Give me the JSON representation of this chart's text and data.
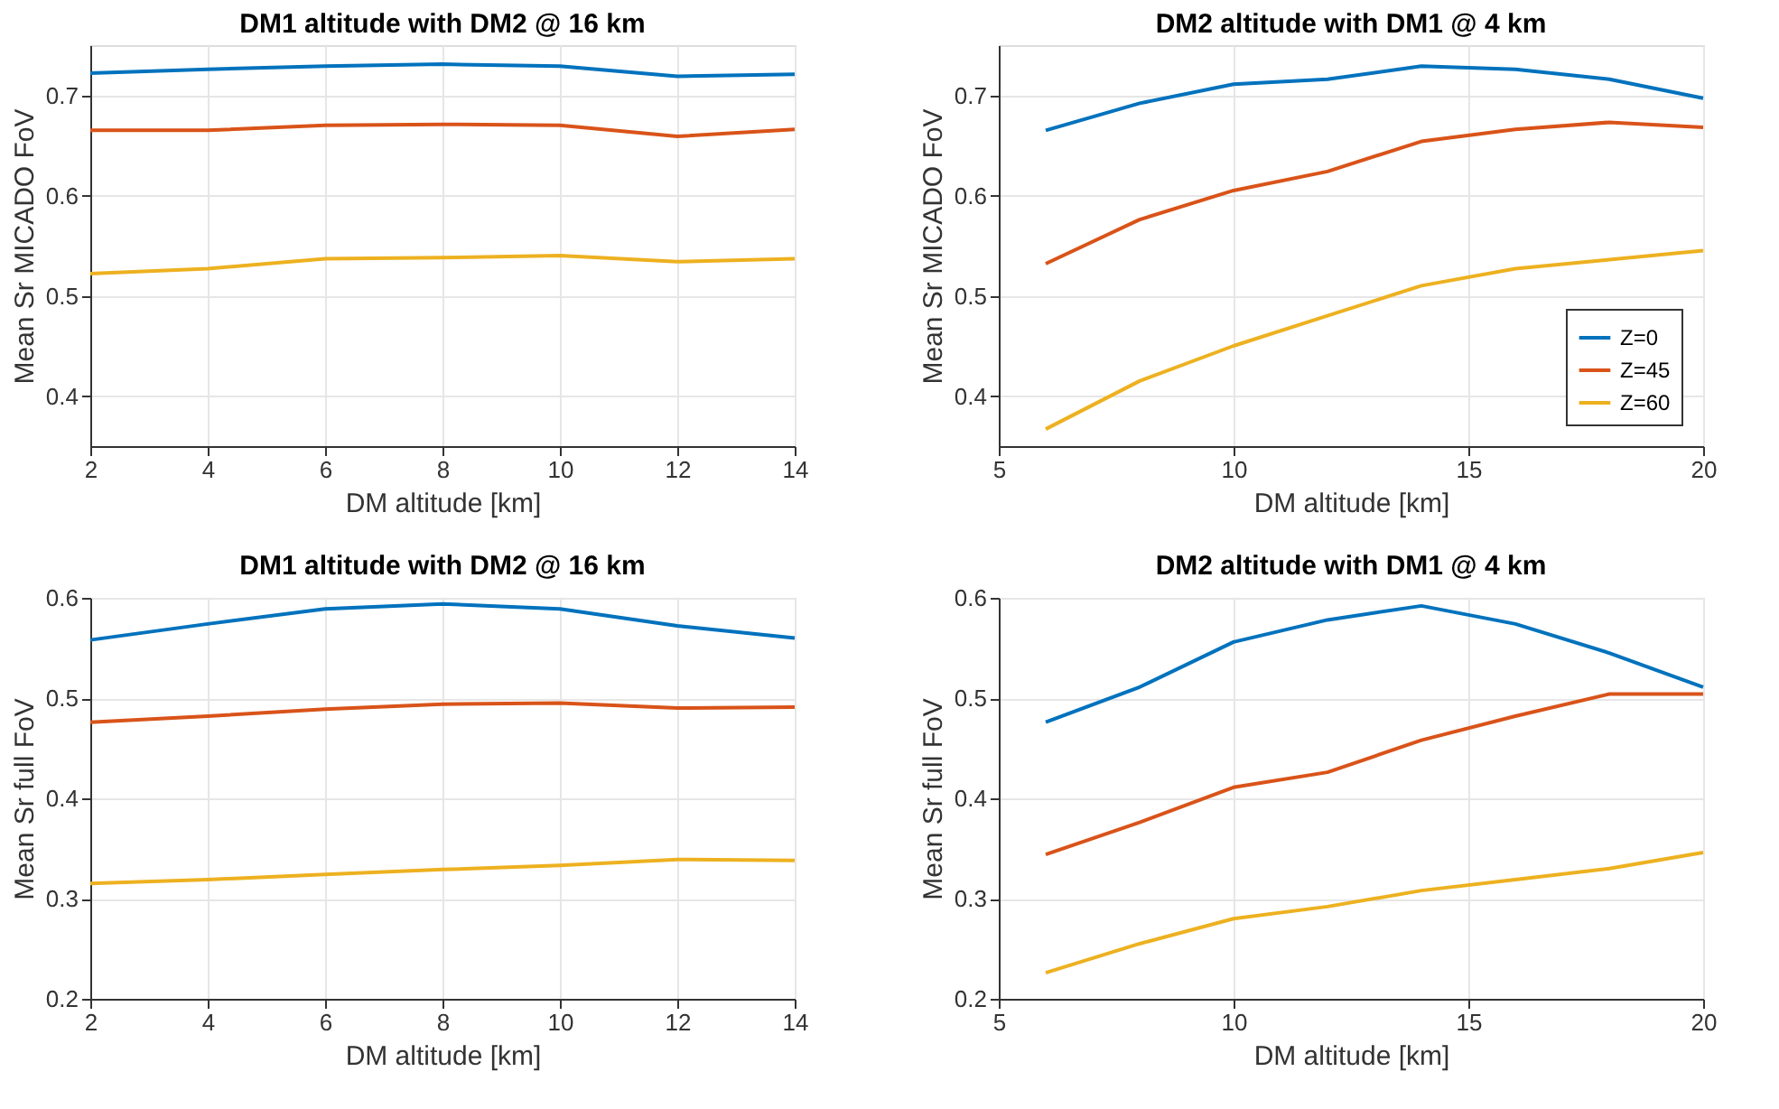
{
  "chart_data": [
    {
      "type": "line",
      "title": "DM1 altitude with DM2 @ 16 km",
      "xlabel": "DM altitude [km]",
      "ylabel": "Mean Sr MICADO FoV",
      "x": [
        2,
        4,
        6,
        8,
        10,
        12,
        14
      ],
      "xlim": [
        2,
        14
      ],
      "xticks": [
        2,
        4,
        6,
        8,
        10,
        12,
        14
      ],
      "ylim": [
        0.35,
        0.75
      ],
      "yticks": [
        0.4,
        0.5,
        0.6,
        0.7
      ],
      "grid": true,
      "series": [
        {
          "color": "#0072bd",
          "values": [
            0.722,
            0.726,
            0.729,
            0.731,
            0.729,
            0.719,
            0.721
          ]
        },
        {
          "color": "#d95319",
          "values": [
            0.665,
            0.665,
            0.67,
            0.671,
            0.67,
            0.659,
            0.666
          ]
        },
        {
          "color": "#edb120",
          "values": [
            0.522,
            0.527,
            0.537,
            0.538,
            0.54,
            0.534,
            0.537
          ]
        }
      ]
    },
    {
      "type": "line",
      "title": "DM2 altitude with DM1 @ 4 km",
      "xlabel": "DM altitude [km]",
      "ylabel": "Mean Sr MICADO FoV",
      "x": [
        6,
        8,
        10,
        12,
        14,
        16,
        18,
        20
      ],
      "xlim": [
        5,
        20
      ],
      "xticks": [
        5,
        10,
        15,
        20
      ],
      "ylim": [
        0.35,
        0.75
      ],
      "yticks": [
        0.4,
        0.5,
        0.6,
        0.7
      ],
      "grid": true,
      "legend": "bottom right",
      "series": [
        {
          "name": "Z=0",
          "color": "#0072bd",
          "values": [
            0.665,
            0.692,
            0.711,
            0.716,
            0.729,
            0.726,
            0.716,
            0.697
          ]
        },
        {
          "name": "Z=45",
          "color": "#d95319",
          "values": [
            0.532,
            0.576,
            0.605,
            0.624,
            0.654,
            0.666,
            0.673,
            0.668
          ]
        },
        {
          "name": "Z=60",
          "color": "#edb120",
          "values": [
            0.367,
            0.415,
            0.45,
            0.48,
            0.51,
            0.527,
            0.536,
            0.545
          ]
        }
      ]
    },
    {
      "type": "line",
      "title": "DM1 altitude with DM2 @ 16 km",
      "xlabel": "DM altitude [km]",
      "ylabel": "Mean Sr full FoV",
      "x": [
        2,
        4,
        6,
        8,
        10,
        12,
        14
      ],
      "xlim": [
        2,
        14
      ],
      "xticks": [
        2,
        4,
        6,
        8,
        10,
        12,
        14
      ],
      "ylim": [
        0.2,
        0.6
      ],
      "yticks": [
        0.2,
        0.3,
        0.4,
        0.5,
        0.6
      ],
      "grid": true,
      "series": [
        {
          "color": "#0072bd",
          "values": [
            0.558,
            0.574,
            0.589,
            0.594,
            0.589,
            0.572,
            0.56
          ]
        },
        {
          "color": "#d95319",
          "values": [
            0.476,
            0.482,
            0.489,
            0.494,
            0.495,
            0.49,
            0.491
          ]
        },
        {
          "color": "#edb120",
          "values": [
            0.315,
            0.319,
            0.324,
            0.329,
            0.333,
            0.339,
            0.338
          ]
        }
      ]
    },
    {
      "type": "line",
      "title": "DM2 altitude with DM1 @ 4 km",
      "xlabel": "DM altitude [km]",
      "ylabel": "Mean Sr full FoV",
      "x": [
        6,
        8,
        10,
        12,
        14,
        16,
        18,
        20
      ],
      "xlim": [
        5,
        20
      ],
      "xticks": [
        5,
        10,
        15,
        20
      ],
      "ylim": [
        0.2,
        0.6
      ],
      "yticks": [
        0.2,
        0.3,
        0.4,
        0.5,
        0.6
      ],
      "grid": true,
      "series": [
        {
          "color": "#0072bd",
          "values": [
            0.476,
            0.511,
            0.556,
            0.578,
            0.592,
            0.574,
            0.545,
            0.511
          ]
        },
        {
          "color": "#d95319",
          "values": [
            0.344,
            0.376,
            0.411,
            0.426,
            0.458,
            0.482,
            0.504,
            0.504
          ]
        },
        {
          "color": "#edb120",
          "values": [
            0.226,
            0.255,
            0.28,
            0.292,
            0.308,
            0.319,
            0.33,
            0.346
          ]
        }
      ]
    }
  ]
}
